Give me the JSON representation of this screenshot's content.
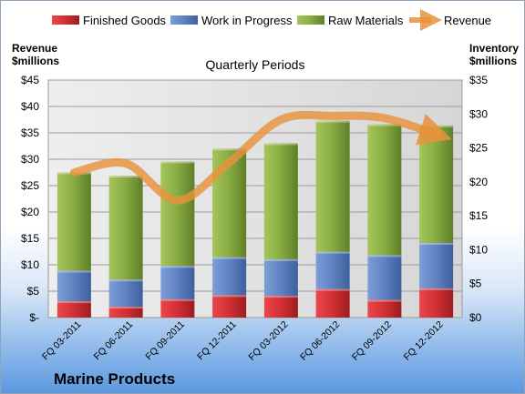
{
  "chart_data": {
    "type": "bar",
    "stacked": true,
    "title": "Quarterly Periods",
    "footer": "Marine Products",
    "ylabel_left": [
      "Revenue",
      "$millions"
    ],
    "ylabel_right": [
      "Inventory",
      "$millions"
    ],
    "left_ticks": [
      "$-",
      "$5",
      "$10",
      "$15",
      "$20",
      "$25",
      "$30",
      "$35",
      "$40",
      "$45"
    ],
    "right_ticks": [
      "$0",
      "$5",
      "$10",
      "$15",
      "$20",
      "$25",
      "$30",
      "$35"
    ],
    "ylim_left": [
      0,
      45
    ],
    "ylim_right": [
      0,
      35
    ],
    "categories": [
      "FQ 03-2011",
      "FQ 06-2011",
      "FQ 09-2011",
      "FQ 12-2011",
      "FQ 03-2012",
      "FQ 06-2012",
      "FQ 09-2012",
      "FQ 12-2012"
    ],
    "series": [
      {
        "name": "Finished Goods",
        "axis": "right",
        "color": "#c0282d",
        "values": [
          2.4,
          1.6,
          2.7,
          3.3,
          3.2,
          4.2,
          2.6,
          4.3
        ]
      },
      {
        "name": "Work in Progress",
        "axis": "right",
        "color": "#5b7fbf",
        "values": [
          4.5,
          4.0,
          4.9,
          5.6,
          5.4,
          5.5,
          6.6,
          6.7
        ]
      },
      {
        "name": "Raw Materials",
        "axis": "right",
        "color": "#7f9f3a",
        "values": [
          14.5,
          15.3,
          15.4,
          16.0,
          17.1,
          19.3,
          19.3,
          17.3
        ]
      },
      {
        "name": "Revenue",
        "axis": "left",
        "type": "line",
        "color": "#e8923c",
        "values": [
          27.5,
          29.2,
          22.2,
          29.4,
          37.5,
          38.2,
          37.8,
          34.7
        ]
      }
    ],
    "grid": true,
    "legend": "top"
  }
}
